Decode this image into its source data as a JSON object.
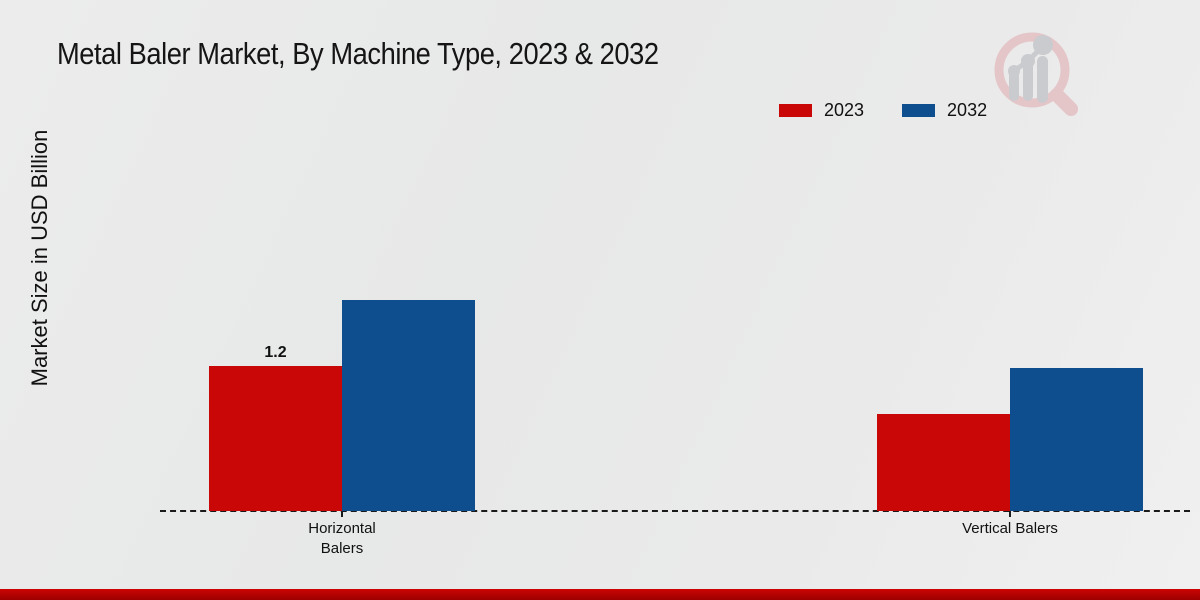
{
  "title": "Metal Baler Market, By Machine Type, 2023 & 2032",
  "y_axis_label": "Market Size in USD Billion",
  "chart_data": {
    "type": "bar",
    "title": "Metal Baler Market, By Machine Type, 2023 & 2032",
    "ylabel": "Market Size in USD Billion",
    "xlabel": "",
    "categories": [
      "Horizontal Balers",
      "Vertical Balers"
    ],
    "series": [
      {
        "name": "2023",
        "color": "#c90707",
        "values": [
          1.2,
          0.8
        ],
        "value_labels": [
          "1.2",
          ""
        ]
      },
      {
        "name": "2032",
        "color": "#0f4e8e",
        "values": [
          1.75,
          1.18
        ],
        "value_labels": [
          "",
          ""
        ]
      }
    ],
    "ylim": [
      0,
      2
    ],
    "grid": false,
    "legend_position": "top-right",
    "baseline_style": "dashed",
    "value_unit": "USD Billion"
  },
  "branding": {
    "logo_name": "magnifier-bar-chart-watermark",
    "ring_color": "#e4c5c8",
    "bars_color": "#c9cbce"
  },
  "accents": {
    "footer_bar_color": "#c00000",
    "background_color": "#e9e9e9"
  }
}
